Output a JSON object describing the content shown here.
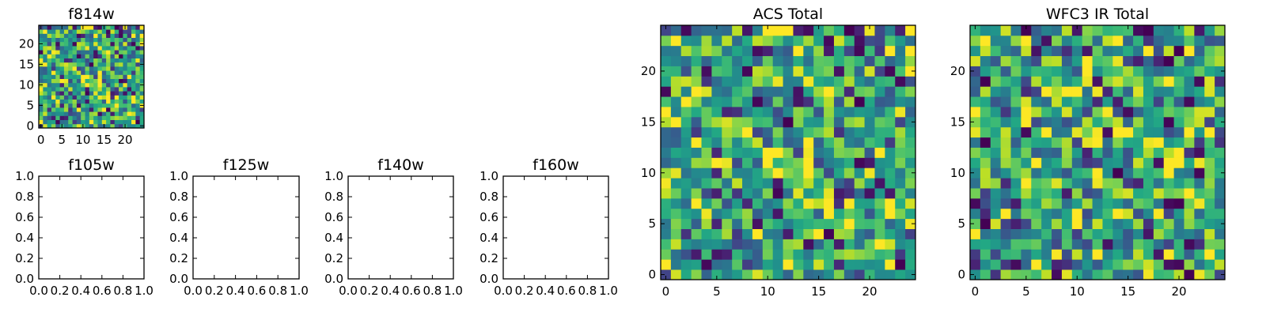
{
  "colormap": "viridis",
  "colors": {
    "low": "#440154",
    "mid": "#21918c",
    "high": "#fde725",
    "frame": "#000000",
    "background": "#ffffff"
  },
  "chart_data": [
    {
      "id": "f814w",
      "type": "heatmap",
      "title": "f814w",
      "grid": false,
      "shape": [
        25,
        25
      ],
      "xlim": [
        -0.5,
        24.5
      ],
      "ylim": [
        -0.5,
        24.5
      ],
      "xticks": [
        0,
        5,
        10,
        15,
        20
      ],
      "xtick_labels": [
        "0",
        "5",
        "10",
        "15",
        "20"
      ],
      "yticks": [
        0,
        5,
        10,
        15,
        20
      ],
      "ytick_labels": [
        "0",
        "5",
        "10",
        "15",
        "20"
      ],
      "value_range": [
        0,
        1
      ],
      "seed": 814,
      "origin": "lower"
    },
    {
      "id": "f105w",
      "type": "empty",
      "title": "f105w",
      "xlim": [
        0,
        1
      ],
      "ylim": [
        0,
        1
      ],
      "xtick_labels": [
        "0.0",
        "0.2",
        "0.4",
        "0.6",
        "0.8",
        "1.0"
      ],
      "ytick_labels": [
        "0.0",
        "0.2",
        "0.4",
        "0.6",
        "0.8",
        "1.0"
      ]
    },
    {
      "id": "f125w",
      "type": "empty",
      "title": "f125w",
      "xlim": [
        0,
        1
      ],
      "ylim": [
        0,
        1
      ],
      "xtick_labels": [
        "0.0",
        "0.2",
        "0.4",
        "0.6",
        "0.8",
        "1.0"
      ],
      "ytick_labels": [
        "0.0",
        "0.2",
        "0.4",
        "0.6",
        "0.8",
        "1.0"
      ]
    },
    {
      "id": "f140w",
      "type": "empty",
      "title": "f140w",
      "xlim": [
        0,
        1
      ],
      "ylim": [
        0,
        1
      ],
      "xtick_labels": [
        "0.0",
        "0.2",
        "0.4",
        "0.6",
        "0.8",
        "1.0"
      ],
      "ytick_labels": [
        "0.0",
        "0.2",
        "0.4",
        "0.6",
        "0.8",
        "1.0"
      ]
    },
    {
      "id": "f160w",
      "type": "empty",
      "title": "f160w",
      "xlim": [
        0,
        1
      ],
      "ylim": [
        0,
        1
      ],
      "xtick_labels": [
        "0.0",
        "0.2",
        "0.4",
        "0.6",
        "0.8",
        "1.0"
      ],
      "ytick_labels": [
        "0.0",
        "0.2",
        "0.4",
        "0.6",
        "0.8",
        "1.0"
      ]
    },
    {
      "id": "acs-total",
      "type": "heatmap",
      "title": "ACS Total",
      "grid": false,
      "shape": [
        25,
        25
      ],
      "xlim": [
        -0.5,
        24.5
      ],
      "ylim": [
        -0.5,
        24.5
      ],
      "xticks": [
        0,
        5,
        10,
        15,
        20
      ],
      "xtick_labels": [
        "0",
        "5",
        "10",
        "15",
        "20"
      ],
      "yticks": [
        0,
        5,
        10,
        15,
        20
      ],
      "ytick_labels": [
        "0",
        "5",
        "10",
        "15",
        "20"
      ],
      "value_range": [
        0,
        1
      ],
      "seed": 814,
      "origin": "lower"
    },
    {
      "id": "wfc3-ir-total",
      "type": "heatmap",
      "title": "WFC3 IR Total",
      "grid": false,
      "shape": [
        25,
        25
      ],
      "xlim": [
        -0.5,
        24.5
      ],
      "ylim": [
        -0.5,
        24.5
      ],
      "xticks": [
        0,
        5,
        10,
        15,
        20
      ],
      "xtick_labels": [
        "0",
        "5",
        "10",
        "15",
        "20"
      ],
      "yticks": [
        0,
        5,
        10,
        15,
        20
      ],
      "ytick_labels": [
        "0",
        "5",
        "10",
        "15",
        "20"
      ],
      "value_range": [
        0,
        1
      ],
      "seed": 1560,
      "origin": "lower"
    }
  ]
}
